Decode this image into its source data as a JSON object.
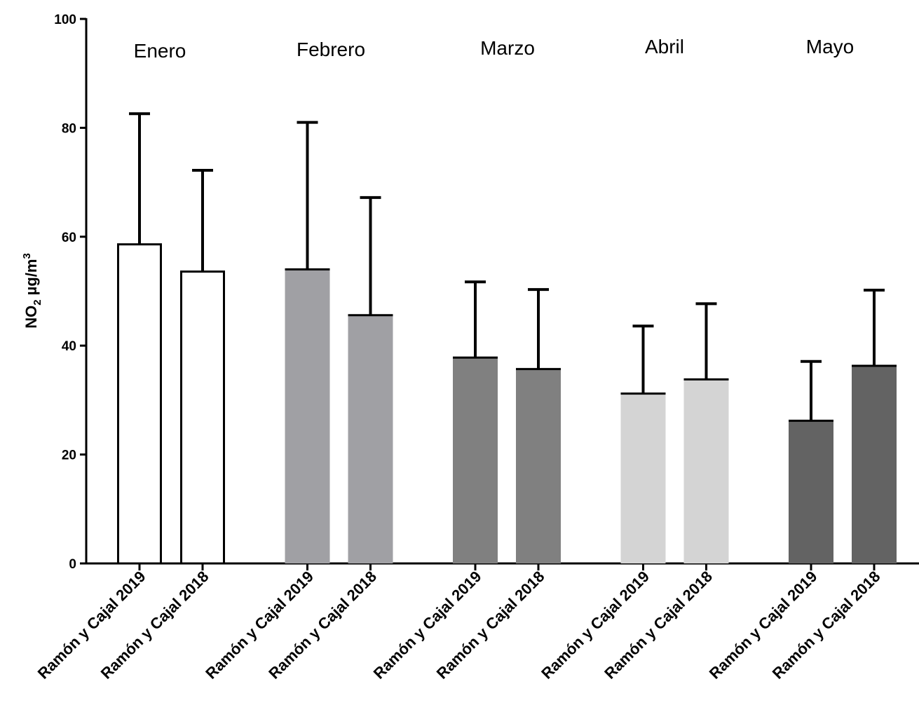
{
  "chart_data": {
    "type": "bar",
    "ylabel": {
      "prefix": "NO",
      "subscript": "2",
      "unit": " µg/m",
      "superscript": "3"
    },
    "ylim": [
      0,
      100
    ],
    "yticks": [
      0,
      20,
      40,
      60,
      80,
      100
    ],
    "grid": false,
    "legend": "none",
    "groups": [
      {
        "label": "Enero",
        "color": "#ffffff",
        "outlined": true,
        "bars": [
          {
            "label": "Ramón y Cajal 2019",
            "value": 58.6,
            "error": 24.0
          },
          {
            "label": "Ramón y Cajal 2018",
            "value": 53.6,
            "error": 18.6
          }
        ]
      },
      {
        "label": "Febrero",
        "color": "#a0a0a4",
        "outlined": false,
        "bars": [
          {
            "label": "Ramón y Cajal 2019",
            "value": 54.0,
            "error": 27.0
          },
          {
            "label": "Ramón y Cajal 2018",
            "value": 45.6,
            "error": 21.6
          }
        ]
      },
      {
        "label": "Marzo",
        "color": "#808080",
        "outlined": false,
        "bars": [
          {
            "label": "Ramón y Cajal 2019",
            "value": 37.8,
            "error": 13.9
          },
          {
            "label": "Ramón y Cajal 2018",
            "value": 35.7,
            "error": 14.6
          }
        ]
      },
      {
        "label": "Abril",
        "color": "#d4d4d4",
        "outlined": false,
        "bars": [
          {
            "label": "Ramón y Cajal 2019",
            "value": 31.2,
            "error": 12.4
          },
          {
            "label": "Ramón y Cajal 2018",
            "value": 33.8,
            "error": 13.9
          }
        ]
      },
      {
        "label": "Mayo",
        "color": "#636363",
        "outlined": false,
        "bars": [
          {
            "label": "Ramón y Cajal 2019",
            "value": 26.2,
            "error": 10.9
          },
          {
            "label": "Ramón y Cajal 2018",
            "value": 36.3,
            "error": 13.9
          }
        ]
      }
    ]
  }
}
